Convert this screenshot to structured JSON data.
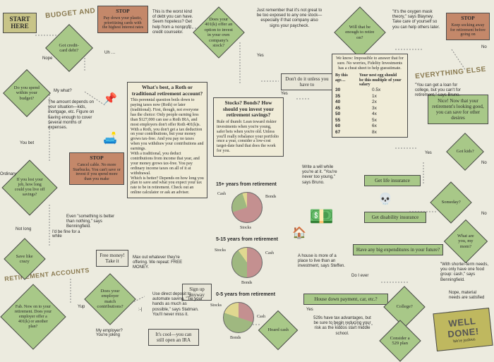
{
  "colors": {
    "green": "#a8c888",
    "pale": "#e8e6d8",
    "cream": "#f0ecd8",
    "stop": "#c4886a",
    "bg": "#ecebdf",
    "pie_stocks": "#c49090",
    "pie_bonds": "#9fb880",
    "pie_cash": "#e0d890",
    "line": "#888"
  },
  "headers": {
    "start": "START HERE",
    "budget": "BUDGET AND DEBT",
    "retire_acc": "RETIREMENT ACCOUNTS",
    "everything": "EVERYTHING ELSE",
    "welldone": "WELL DONE!",
    "jealous": "We're jealous"
  },
  "stops": {
    "plastic": {
      "t": "STOP",
      "b": "Pay down your plastic, prioritizing cards with the highest interest rates"
    },
    "cable": {
      "t": "STOP",
      "b": "Cancel cable. No more Starbucks. You can't save or invest if you spend more than you make"
    },
    "socking": {
      "t": "STOP",
      "b": "Keep socking away for retirement before going on"
    }
  },
  "diamonds": {
    "credit": "Got credit-card debt?",
    "budget": "Do you spend within your budget?",
    "lostjob": "If you lost your job, how long could you live off savings?",
    "save": "Save like crazy",
    "fab": "Fab. Now on to your retirement. Does your employer offer a 401(k) or another plan?",
    "match": "Does your employer match contributions?",
    "k401": "Does your 401(k) offer an option to invest in your own company's stock?",
    "enough": "Will that be enough to retire on?",
    "kids": "Got kids?",
    "someday": "Someday?",
    "mom": "What are you, my mom?",
    "gli": "Get life insurance",
    "gdi": "Get disability insurance",
    "expend": "Have any big expenditures in your future?",
    "house": "House down payment, car, etc.?",
    "hoard": "Hoard cash",
    "college": "College?",
    "c529": "Consider a 529 plan"
  },
  "boxes": {
    "roth_t": "What's best, a Roth or traditional retirement account?",
    "roth_b": "This perennial question boils down to paying taxes now (Roth) or later (traditional). First, though, not everyone has the choice: Only people earning less than $127,000 can use a Roth IRA, and most employers don't offer Roth 401(k)s.\nWith a Roth, you don't get a tax deduction on your contributions, but your money grows tax-free. And you pay no taxes when you withdraw your contributions and earnings.\nWith a traditional, you deduct contributions from income that year, and your money grows tax-free. You pay ordinary income taxes on all of it at withdrawal.\nWhich is better? Depends on how long you plan to save and what you expect your tax rate to be in retirement. Check out an online calculator or ask an adviser.",
    "stocks_t": "Stocks? Bonds? How should you invest your retirement savings?",
    "stocks_b": "Rule of thumb: Lean toward riskier investments when you're young, safer bets when you're old. Unless you'll really rebalance your portfolio once a year, consider a low-cost target-date fund that does the work for you.",
    "nestegg_t": "We know: Impossible to answer that for sure. No worries, Fidelity Investments has a cheat sheet to help guesstimate.",
    "nestegg_by": "By this age…",
    "nestegg_sal": "Your nest egg should be this multiple of your salary",
    "nice": "Nice! Now that your retirement's looking good, you can save for other desires",
    "dont": "Don't do it unless you have to",
    "freemoney": "Free money! Take it",
    "signup": "Sign up anyway",
    "ira": "It's cool—you can still open an IRA"
  },
  "notes": {
    "worst": "This is the worst kind of debt you can have. Seem hopeless? Get help from a nonprofit credit counselor.",
    "amount": "The amount depends on your situation—kids, mortgage, etc. Figure on having enough to cover several months of expenses.",
    "justremember": "Just remember that it's not great to be too exposed to any one stock—especially if that company also signs your paycheck.",
    "something": "Even \"something is better than nothing,\" says Benningfield.",
    "maxout": "Max out whatever they're offering. We repeat: FREE MONEY.",
    "deposit": "Use direct deposit to automate saving. \"Tie your hands as much as possible,\" says Statman. You'll never miss it.",
    "oxygen": "\"It's the oxygen mask theory,\" says Blayney. Take care of yourself so you can help others later.",
    "loan": "\"You can get a loan for college, but you can't for retirement,\" says Bruno.",
    "will": "Write a will while you're at it. \"You're never too young,\" says Bruno.",
    "houseinv": "A house is more of a place to live than an investment, says Steffen.",
    "tax529": "529s have tax advantages, but be sure to begin reducing your risk as the kiddos start middle school.",
    "shorter": "\"With shorter-term needs, you only have one food group: cash,\" says Benningfield.",
    "nope_mat": "Nope, material needs are satisfied"
  },
  "labels": {
    "nope": "Nope",
    "uh": "Uh …",
    "mywhat": "My what?",
    "youbet": "You bet",
    "notlong": "Not long",
    "fine": "I'd be fine for a while",
    "yup": "Yup",
    "smirk": ":-|",
    "myemp": "My employer? You're joking",
    "yes": "Yes",
    "no": "No",
    "ordinary": "Ordinary",
    "doiever": "Do I ever"
  },
  "ageTable": {
    "ages": [
      "30",
      "35",
      "40",
      "45",
      "50",
      "55",
      "60",
      "67"
    ],
    "mult": [
      "0.5x",
      "1x",
      "2x",
      "3x",
      "4x",
      "5x",
      "6x",
      "8x"
    ]
  },
  "pies": {
    "p15": {
      "title": "15+ years from retirement",
      "stocks": 70,
      "bonds": 25,
      "cash": 5
    },
    "p5": {
      "title": "5-15 years from retirement",
      "stocks": 50,
      "bonds": 40,
      "cash": 10
    },
    "p0": {
      "title": "0-5 years from retirement",
      "stocks": 30,
      "bonds": 50,
      "cash": 20
    }
  }
}
